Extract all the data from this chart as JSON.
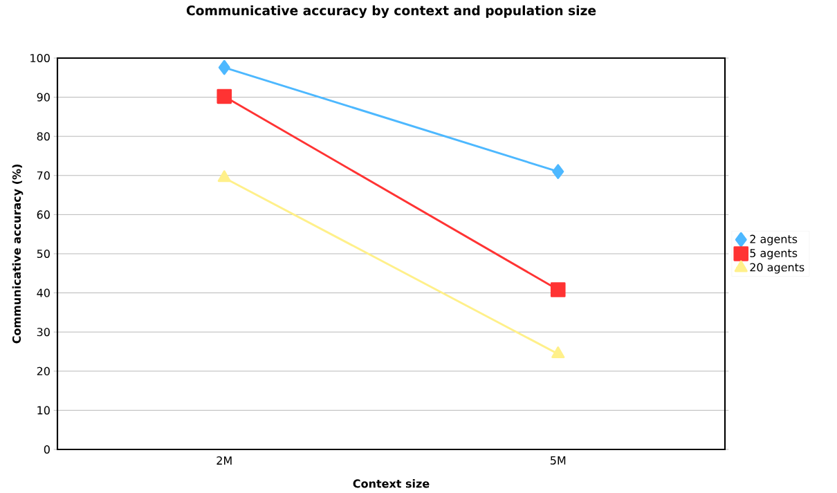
{
  "chart_data": {
    "type": "line",
    "title": "Communicative accuracy by context and population size",
    "xlabel": "Context size",
    "ylabel": "Communicative accuracy (%)",
    "categories": [
      "2M",
      "5M"
    ],
    "series": [
      {
        "name": "2 agents",
        "color": "#4db8ff",
        "marker": "diamond",
        "values": [
          97.6,
          71.0
        ]
      },
      {
        "name": "5 agents",
        "color": "#ff3333",
        "marker": "square",
        "values": [
          90.2,
          40.8
        ]
      },
      {
        "name": "20 agents",
        "color": "#fff08a",
        "marker": "triangle",
        "values": [
          69.4,
          24.4
        ]
      }
    ],
    "ylim": [
      0,
      100
    ],
    "yticks": [
      0,
      10,
      20,
      30,
      40,
      50,
      60,
      70,
      80,
      90,
      100
    ],
    "grid": "y",
    "legend": "right",
    "line_style": "solid"
  }
}
